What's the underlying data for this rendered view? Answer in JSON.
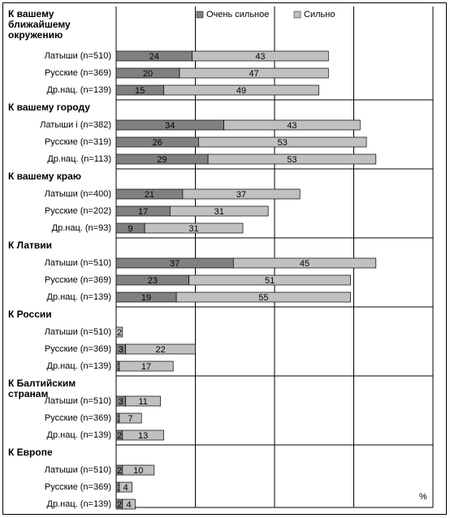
{
  "chart_data": {
    "type": "bar",
    "stacked": true,
    "series": [
      {
        "name": "Очень сильное",
        "color": "#808080",
        "values": [
          24,
          20,
          15,
          34,
          26,
          29,
          21,
          17,
          9,
          37,
          23,
          19,
          0,
          3,
          1,
          3,
          1,
          2,
          2,
          1,
          2
        ]
      },
      {
        "name": "Сильно",
        "color": "#c0c0c0",
        "values": [
          43,
          47,
          49,
          43,
          53,
          53,
          37,
          31,
          31,
          45,
          51,
          55,
          2,
          22,
          17,
          11,
          7,
          13,
          10,
          4,
          4
        ]
      }
    ],
    "groups": [
      {
        "title": "К вашему ближайшему окружению",
        "categories": [
          "Латыши (n=510)",
          "Русские (n=369)",
          "Др.нац. (n=139)"
        ]
      },
      {
        "title": "К вашему городу",
        "categories": [
          "Латыши i (n=382)",
          "Русские (n=319)",
          "Др.нац.  (n=113)"
        ]
      },
      {
        "title": "К вашему краю",
        "categories": [
          "Латыши (n=400)",
          "Русские (n=202)",
          "Др.нац. (n=93)"
        ]
      },
      {
        "title": "К Латвии",
        "categories": [
          "Латыши (n=510)",
          "Русские (n=369)",
          "Др.нац. (n=139)"
        ]
      },
      {
        "title": "К России",
        "categories": [
          "Латыши (n=510)",
          "Русские (n=369)",
          "Др.нац. (n=139)"
        ]
      },
      {
        "title": "К Балтийским странам",
        "categories": [
          "Латыши (n=510)",
          "Русские (n=369)",
          "Др.нац. (n=139)"
        ]
      },
      {
        "title": "К Европе",
        "categories": [
          "Латыши (n=510)",
          "Русские (n=369)",
          "Др.нац.  (n=139)"
        ]
      }
    ],
    "xlim": [
      0,
      100
    ],
    "xticks": [
      0,
      25,
      50,
      75,
      100
    ],
    "grid": true,
    "unit_label": "%"
  }
}
